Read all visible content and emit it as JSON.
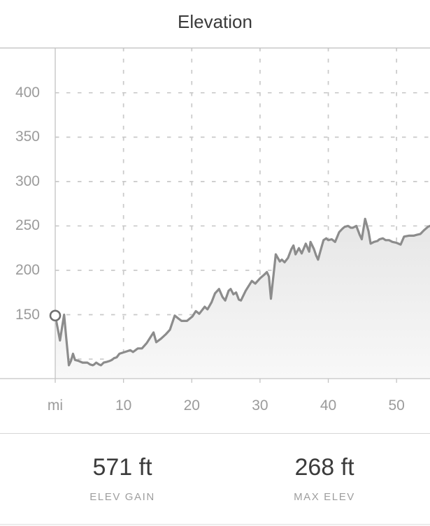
{
  "header": {
    "title": "Elevation"
  },
  "chart_data": {
    "type": "area",
    "title": "Elevation",
    "xlabel": "mi",
    "ylabel": "ft",
    "xlim": [
      0,
      54.9
    ],
    "ylim": [
      78,
      451
    ],
    "grid": true,
    "legend": "none",
    "y_ticks": [
      {
        "value": 400,
        "label": "400"
      },
      {
        "value": 350,
        "label": "350"
      },
      {
        "value": 300,
        "label": "300"
      },
      {
        "value": 250,
        "label": "250"
      },
      {
        "value": 200,
        "label": "200"
      },
      {
        "value": 150,
        "label": "150"
      },
      {
        "value": 100,
        "label": ""
      }
    ],
    "x_ticks": [
      {
        "value": 0,
        "label": "mi"
      },
      {
        "value": 10,
        "label": "10"
      },
      {
        "value": 20,
        "label": "20"
      },
      {
        "value": 30,
        "label": "30"
      },
      {
        "value": 40,
        "label": "40"
      },
      {
        "value": 50,
        "label": "50"
      }
    ],
    "start_marker": {
      "mi": 0,
      "ft": 149
    },
    "series": [
      {
        "name": "elevation_ft",
        "points": [
          [
            0,
            149
          ],
          [
            0.35,
            135
          ],
          [
            0.7,
            121
          ],
          [
            1.0,
            136
          ],
          [
            1.3,
            150
          ],
          [
            1.6,
            125
          ],
          [
            2.0,
            93
          ],
          [
            2.3,
            98
          ],
          [
            2.6,
            106
          ],
          [
            2.9,
            99
          ],
          [
            3.4,
            98
          ],
          [
            4.0,
            96
          ],
          [
            4.7,
            96
          ],
          [
            5.1,
            94
          ],
          [
            5.5,
            93
          ],
          [
            5.7,
            94
          ],
          [
            6.0,
            96
          ],
          [
            6.4,
            94
          ],
          [
            6.7,
            93
          ],
          [
            7.1,
            96
          ],
          [
            7.6,
            97
          ],
          [
            8.0,
            98
          ],
          [
            8.3,
            99
          ],
          [
            8.6,
            101
          ],
          [
            9.0,
            102
          ],
          [
            9.4,
            106
          ],
          [
            9.8,
            107
          ],
          [
            10.2,
            108
          ],
          [
            10.6,
            109
          ],
          [
            11.0,
            110
          ],
          [
            11.4,
            108
          ],
          [
            12.1,
            112
          ],
          [
            12.7,
            112
          ],
          [
            13.4,
            118
          ],
          [
            13.9,
            124
          ],
          [
            14.4,
            130
          ],
          [
            14.8,
            119
          ],
          [
            15.5,
            123
          ],
          [
            16.2,
            128
          ],
          [
            16.8,
            133
          ],
          [
            17.5,
            149
          ],
          [
            18.0,
            146
          ],
          [
            18.5,
            143
          ],
          [
            19.3,
            143
          ],
          [
            20.1,
            148
          ],
          [
            20.6,
            154
          ],
          [
            21.1,
            151
          ],
          [
            21.9,
            159
          ],
          [
            22.3,
            156
          ],
          [
            22.9,
            164
          ],
          [
            23.4,
            174
          ],
          [
            24.0,
            179
          ],
          [
            24.5,
            170
          ],
          [
            24.9,
            166
          ],
          [
            25.4,
            177
          ],
          [
            25.7,
            179
          ],
          [
            26.1,
            173
          ],
          [
            26.5,
            175
          ],
          [
            26.9,
            167
          ],
          [
            27.2,
            166
          ],
          [
            27.9,
            177
          ],
          [
            28.8,
            188
          ],
          [
            29.3,
            185
          ],
          [
            30.0,
            191
          ],
          [
            30.6,
            195
          ],
          [
            31.0,
            198
          ],
          [
            31.3,
            193
          ],
          [
            31.6,
            168
          ],
          [
            32.3,
            218
          ],
          [
            32.9,
            210
          ],
          [
            33.2,
            212
          ],
          [
            33.6,
            209
          ],
          [
            34.1,
            214
          ],
          [
            34.6,
            224
          ],
          [
            34.9,
            228
          ],
          [
            35.2,
            218
          ],
          [
            35.7,
            225
          ],
          [
            36.1,
            219
          ],
          [
            36.7,
            230
          ],
          [
            37.2,
            221
          ],
          [
            37.4,
            232
          ],
          [
            37.9,
            224
          ],
          [
            38.2,
            217
          ],
          [
            38.5,
            212
          ],
          [
            39.0,
            226
          ],
          [
            39.3,
            234
          ],
          [
            39.7,
            236
          ],
          [
            40.0,
            234
          ],
          [
            40.5,
            235
          ],
          [
            41.0,
            232
          ],
          [
            41.6,
            243
          ],
          [
            42.1,
            247
          ],
          [
            42.4,
            249
          ],
          [
            42.9,
            250
          ],
          [
            43.3,
            248
          ],
          [
            43.6,
            248
          ],
          [
            44.1,
            250
          ],
          [
            44.6,
            240
          ],
          [
            44.9,
            235
          ],
          [
            45.4,
            258
          ],
          [
            45.9,
            244
          ],
          [
            46.2,
            230
          ],
          [
            46.7,
            232
          ],
          [
            47.2,
            233
          ],
          [
            47.5,
            235
          ],
          [
            48.0,
            236
          ],
          [
            48.4,
            234
          ],
          [
            48.9,
            234
          ],
          [
            49.4,
            232
          ],
          [
            50.0,
            231
          ],
          [
            50.6,
            229
          ],
          [
            51.1,
            238
          ],
          [
            51.8,
            239
          ],
          [
            52.5,
            239
          ],
          [
            53.0,
            240
          ],
          [
            53.5,
            241
          ],
          [
            54.0,
            245
          ],
          [
            54.6,
            249
          ],
          [
            54.9,
            250
          ]
        ]
      }
    ],
    "colors": {
      "line": "#8c8c8c",
      "fill_top": "#e6e6e6",
      "fill_bottom": "#f8f8f8",
      "grid": "#c9c9c9",
      "axis": "#c4c4c4",
      "marker_fill": "#ffffff",
      "marker_stroke": "#707070"
    }
  },
  "stats": {
    "items": [
      {
        "value": "571 ft",
        "label": "ELEV GAIN"
      },
      {
        "value": "268 ft",
        "label": "MAX ELEV"
      }
    ]
  }
}
